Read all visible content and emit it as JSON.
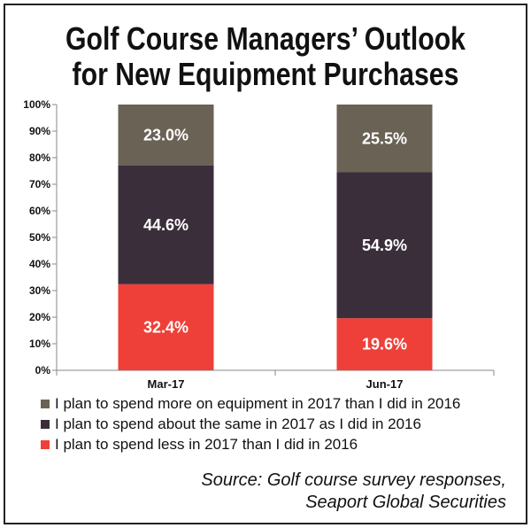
{
  "chart_data": {
    "type": "bar",
    "stacked": true,
    "title": [
      "Golf Course Managers’ Outlook",
      "for New Equipment Purchases"
    ],
    "categories": [
      "Mar-17",
      "Jun-17"
    ],
    "series": [
      {
        "name": "I plan to spend less in 2017 than I did in 2016",
        "values": [
          32.4,
          19.6
        ],
        "labels": [
          "32.4%",
          "19.6%"
        ],
        "color": "#ee4038"
      },
      {
        "name": "I plan to spend about the same in 2017 as I did in 2016",
        "values": [
          44.6,
          54.9
        ],
        "labels": [
          "44.6%",
          "54.9%"
        ],
        "color": "#3b2e3b"
      },
      {
        "name": "I plan to spend more on equipment in 2017 than I did in 2016",
        "values": [
          23.0,
          25.5
        ],
        "labels": [
          "23.0%",
          "25.5%"
        ],
        "color": "#6a6255"
      }
    ],
    "legend_order": [
      2,
      1,
      0
    ],
    "yticks": [
      "0%",
      "10%",
      "20%",
      "30%",
      "40%",
      "50%",
      "60%",
      "70%",
      "80%",
      "90%",
      "100%"
    ],
    "ylim": [
      0,
      100
    ],
    "xlabel": "",
    "ylabel": "",
    "source": [
      "Source: Golf course survey responses,",
      "Seaport Global Securities"
    ]
  }
}
